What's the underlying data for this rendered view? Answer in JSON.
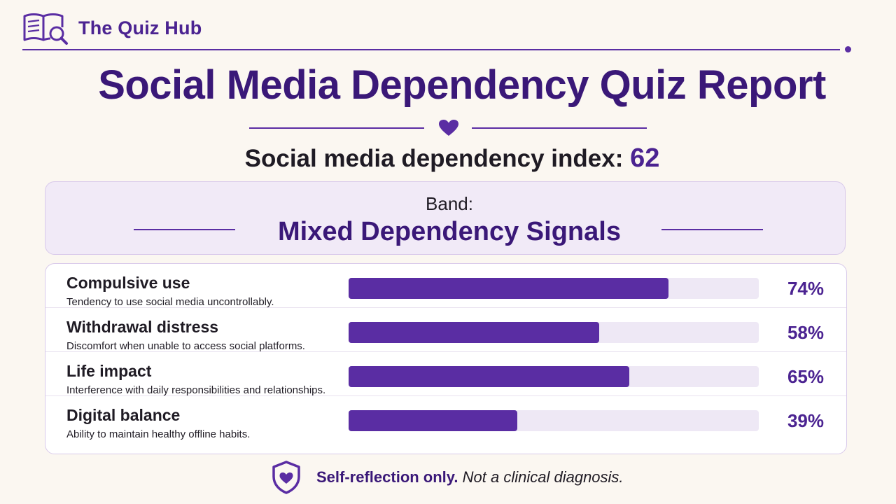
{
  "header": {
    "brand": "The Quiz Hub",
    "logo_icon": "book-search-icon"
  },
  "report": {
    "title": "Social Media Dependency Quiz Report",
    "divider_icon": "heart-icon",
    "index_label": "Social media dependency index:",
    "index_value": "62",
    "band_label": "Band:",
    "band_value": "Mixed Dependency Signals"
  },
  "metrics": [
    {
      "name": "Compulsive use",
      "description": "Tendency to use social media uncontrollably.",
      "percent_label": "74%",
      "value": 74
    },
    {
      "name": "Withdrawal distress",
      "description": "Discomfort when unable to access social platforms.",
      "percent_label": "58%",
      "value": 58
    },
    {
      "name": "Life impact",
      "description": "Interference with daily responsibilities and relationships.",
      "percent_label": "65%",
      "value": 65
    },
    {
      "name": "Digital balance",
      "description": "Ability to maintain healthy offline habits.",
      "percent_label": "39%",
      "value": 39
    }
  ],
  "footer": {
    "icon": "shield-heart-icon",
    "strong": "Self-reflection only.",
    "note": "Not a clinical diagnosis."
  },
  "colors": {
    "accent": "#5a2da3",
    "title": "#3a1878",
    "background": "#fbf7f1",
    "track": "#eee8f5"
  }
}
